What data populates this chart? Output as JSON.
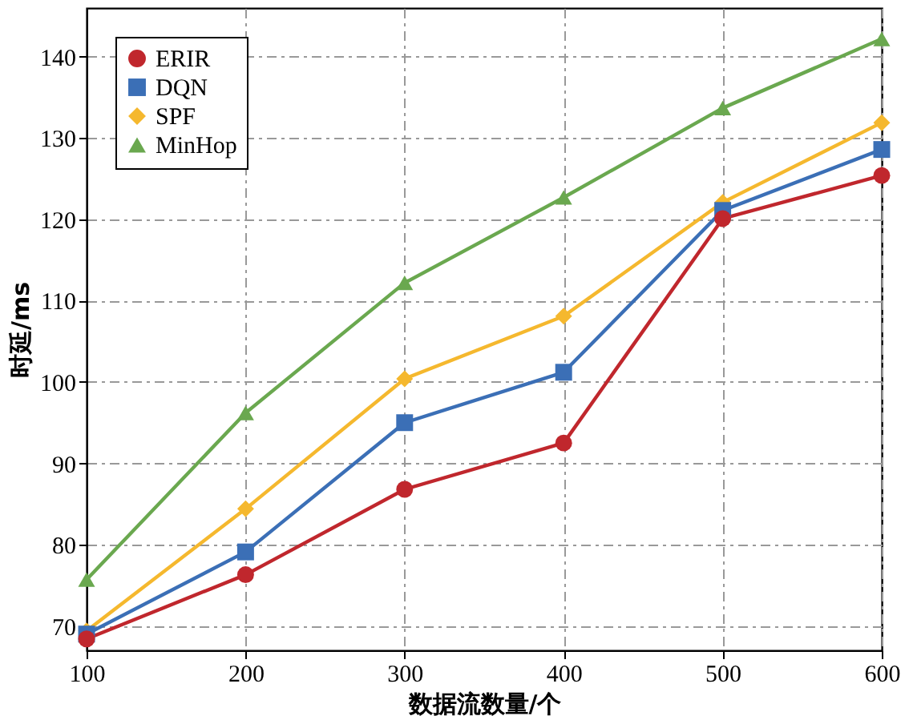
{
  "chart_data": {
    "type": "line",
    "xlabel": "数据流数量/个",
    "ylabel": "时延/ms",
    "x": [
      100,
      200,
      300,
      400,
      500,
      600
    ],
    "xlim": [
      100,
      600
    ],
    "xticks": [
      100,
      200,
      300,
      400,
      500,
      600
    ],
    "ylim": [
      67,
      146
    ],
    "yticks": [
      70,
      80,
      90,
      100,
      110,
      120,
      130,
      140
    ],
    "grid": true,
    "legend": "top left",
    "line_style": "solid",
    "series": [
      {
        "name": "ERIR",
        "color": "#c0272d",
        "marker": "circle",
        "values": [
          68.4,
          76.3,
          86.8,
          92.5,
          120.1,
          125.4
        ]
      },
      {
        "name": "DQN",
        "color": "#3b6fb6",
        "marker": "square",
        "values": [
          69.0,
          79.1,
          95.0,
          101.2,
          121.1,
          128.6
        ]
      },
      {
        "name": "SPF",
        "color": "#f5b82e",
        "marker": "diamond",
        "values": [
          69.4,
          84.4,
          100.4,
          108.1,
          122.1,
          131.9
        ]
      },
      {
        "name": "MinHop",
        "color": "#6aa84f",
        "marker": "triangle",
        "values": [
          75.7,
          96.2,
          112.2,
          122.7,
          133.7,
          142.2
        ]
      }
    ]
  }
}
